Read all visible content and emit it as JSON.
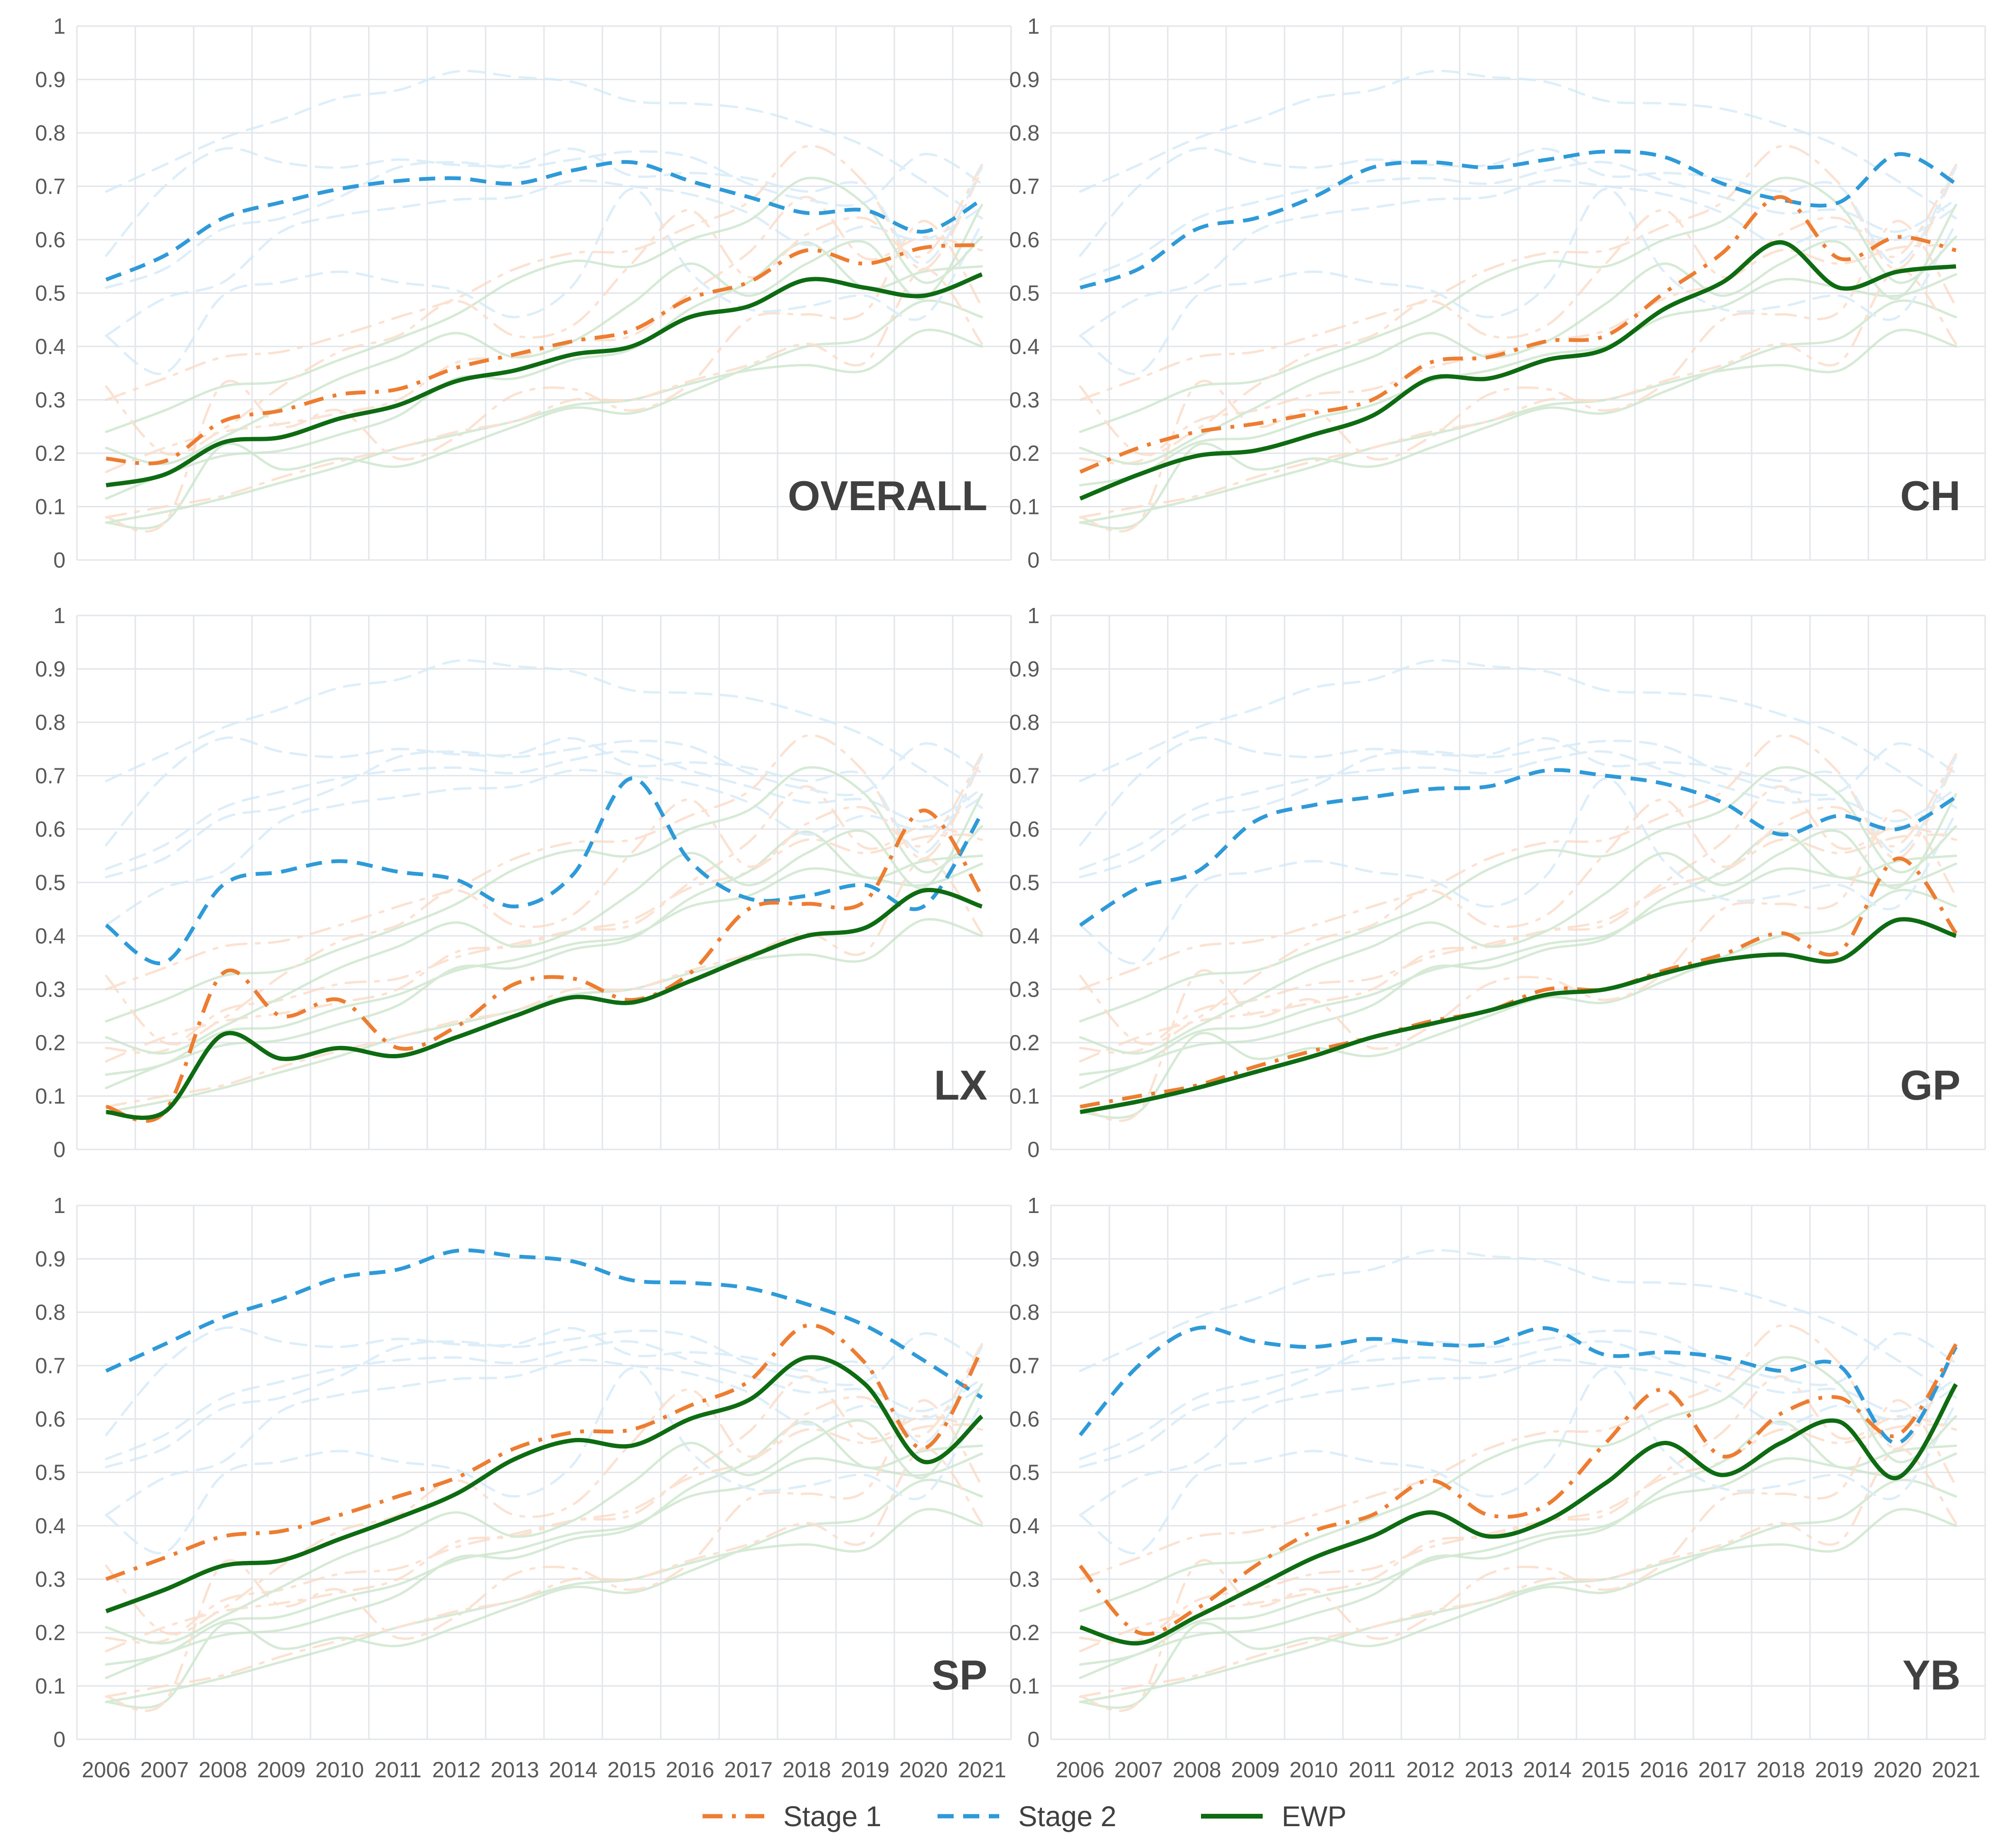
{
  "colors": {
    "stage1": "#ED7D31",
    "stage2": "#2E9AD8",
    "ewp": "#0E6B12",
    "stage1_bg": "#FAD9C3",
    "stage2_bg": "#D2E9F7",
    "ewp_bg": "#C9E3C9",
    "grid": "#E3E6EA"
  },
  "chart_data": {
    "type": "line",
    "x": [
      "2006",
      "2007",
      "2008",
      "2009",
      "2010",
      "2011",
      "2012",
      "2013",
      "2014",
      "2015",
      "2016",
      "2017",
      "2018",
      "2019",
      "2020",
      "2021"
    ],
    "ylim": [
      0,
      1
    ],
    "y_ticks": [
      "0",
      "0.1",
      "0.2",
      "0.3",
      "0.4",
      "0.5",
      "0.6",
      "0.7",
      "0.8",
      "0.9",
      "1"
    ],
    "legend": [
      {
        "key": "stage1",
        "label": "Stage 1"
      },
      {
        "key": "stage2",
        "label": "Stage 2"
      },
      {
        "key": "ewp",
        "label": "EWP"
      }
    ],
    "panels": [
      {
        "title": "OVERALL",
        "stage1": [
          0.19,
          0.185,
          0.26,
          0.28,
          0.31,
          0.32,
          0.36,
          0.385,
          0.41,
          0.43,
          0.49,
          0.52,
          0.58,
          0.555,
          0.585,
          0.59
        ],
        "stage2": [
          0.525,
          0.57,
          0.64,
          0.67,
          0.695,
          0.71,
          0.715,
          0.705,
          0.73,
          0.745,
          0.71,
          0.68,
          0.65,
          0.655,
          0.615,
          0.675
        ],
        "ewp": [
          0.14,
          0.16,
          0.22,
          0.23,
          0.265,
          0.29,
          0.335,
          0.355,
          0.385,
          0.4,
          0.455,
          0.475,
          0.525,
          0.51,
          0.495,
          0.535
        ]
      },
      {
        "title": "CH",
        "stage1": [
          0.165,
          0.21,
          0.24,
          0.255,
          0.275,
          0.3,
          0.37,
          0.38,
          0.41,
          0.42,
          0.5,
          0.575,
          0.68,
          0.565,
          0.605,
          0.58
        ],
        "stage2": [
          0.51,
          0.545,
          0.62,
          0.64,
          0.68,
          0.735,
          0.745,
          0.735,
          0.75,
          0.765,
          0.755,
          0.705,
          0.675,
          0.67,
          0.76,
          0.705
        ],
        "ewp": [
          0.115,
          0.16,
          0.195,
          0.205,
          0.235,
          0.27,
          0.34,
          0.34,
          0.375,
          0.395,
          0.47,
          0.52,
          0.595,
          0.51,
          0.54,
          0.55
        ]
      },
      {
        "title": "LX",
        "stage1": [
          0.08,
          0.07,
          0.33,
          0.25,
          0.28,
          0.19,
          0.23,
          0.31,
          0.32,
          0.28,
          0.33,
          0.45,
          0.46,
          0.465,
          0.635,
          0.475
        ],
        "stage2": [
          0.42,
          0.35,
          0.495,
          0.52,
          0.54,
          0.52,
          0.505,
          0.455,
          0.515,
          0.695,
          0.54,
          0.47,
          0.475,
          0.495,
          0.455,
          0.63
        ],
        "ewp": [
          0.07,
          0.07,
          0.215,
          0.17,
          0.19,
          0.175,
          0.21,
          0.25,
          0.285,
          0.275,
          0.315,
          0.36,
          0.4,
          0.415,
          0.485,
          0.455
        ]
      },
      {
        "title": "GP",
        "stage1": [
          0.08,
          0.1,
          0.12,
          0.155,
          0.185,
          0.21,
          0.24,
          0.26,
          0.3,
          0.3,
          0.335,
          0.365,
          0.405,
          0.37,
          0.545,
          0.405
        ],
        "stage2": [
          0.42,
          0.49,
          0.52,
          0.615,
          0.645,
          0.66,
          0.675,
          0.68,
          0.71,
          0.7,
          0.685,
          0.65,
          0.59,
          0.625,
          0.6,
          0.66
        ],
        "ewp": [
          0.07,
          0.09,
          0.115,
          0.145,
          0.175,
          0.21,
          0.235,
          0.26,
          0.29,
          0.3,
          0.33,
          0.355,
          0.365,
          0.355,
          0.43,
          0.4
        ]
      },
      {
        "title": "SP",
        "stage1": [
          0.3,
          0.34,
          0.38,
          0.39,
          0.42,
          0.455,
          0.49,
          0.545,
          0.575,
          0.58,
          0.625,
          0.67,
          0.775,
          0.705,
          0.545,
          0.73
        ],
        "stage2": [
          0.69,
          0.74,
          0.79,
          0.825,
          0.865,
          0.88,
          0.915,
          0.905,
          0.895,
          0.86,
          0.855,
          0.845,
          0.815,
          0.775,
          0.71,
          0.64
        ],
        "ewp": [
          0.24,
          0.28,
          0.325,
          0.335,
          0.375,
          0.415,
          0.46,
          0.525,
          0.56,
          0.55,
          0.6,
          0.635,
          0.715,
          0.665,
          0.52,
          0.605
        ]
      },
      {
        "title": "YB",
        "stage1": [
          0.325,
          0.2,
          0.245,
          0.325,
          0.39,
          0.42,
          0.485,
          0.42,
          0.44,
          0.555,
          0.655,
          0.53,
          0.61,
          0.64,
          0.57,
          0.74
        ],
        "stage2": [
          0.57,
          0.7,
          0.77,
          0.745,
          0.735,
          0.75,
          0.74,
          0.74,
          0.77,
          0.72,
          0.725,
          0.715,
          0.69,
          0.7,
          0.555,
          0.735
        ],
        "ewp": [
          0.21,
          0.18,
          0.23,
          0.285,
          0.34,
          0.38,
          0.425,
          0.38,
          0.41,
          0.48,
          0.555,
          0.495,
          0.555,
          0.595,
          0.49,
          0.665
        ]
      }
    ]
  }
}
